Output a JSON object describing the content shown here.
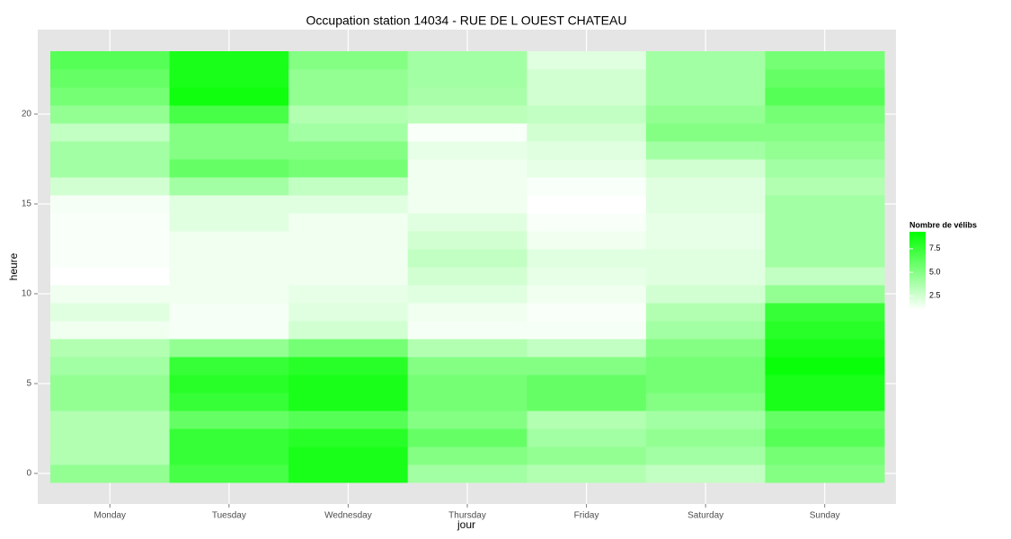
{
  "chart_data": {
    "type": "heatmap",
    "title": "Occupation station 14034 - RUE DE L OUEST CHATEAU",
    "x_label": "jour",
    "y_label": "heure",
    "categories": [
      "Monday",
      "Tuesday",
      "Wednesday",
      "Thursday",
      "Friday",
      "Saturday",
      "Sunday"
    ],
    "y": [
      0,
      1,
      2,
      3,
      4,
      5,
      6,
      7,
      8,
      9,
      10,
      11,
      12,
      13,
      14,
      15,
      16,
      17,
      18,
      19,
      20,
      21,
      22,
      23
    ],
    "values": [
      [
        4.5,
        7,
        8.5,
        4,
        3.5,
        3,
        5
      ],
      [
        3.5,
        7.5,
        8.5,
        5,
        4.5,
        4,
        5.5
      ],
      [
        3.5,
        7.5,
        8,
        6,
        4,
        4.5,
        6.5
      ],
      [
        3.5,
        6,
        6.5,
        5,
        3.5,
        4,
        6
      ],
      [
        4.5,
        7.5,
        8.5,
        5.5,
        6,
        5,
        8.5
      ],
      [
        4.5,
        8,
        8.5,
        5.5,
        6,
        5.5,
        8.5
      ],
      [
        4,
        7.5,
        8,
        5,
        5,
        5.5,
        9
      ],
      [
        3.5,
        4.5,
        5.5,
        3.5,
        3,
        5,
        8.5
      ],
      [
        1.5,
        1.3,
        2.5,
        1.3,
        1.3,
        4,
        8
      ],
      [
        2,
        1.3,
        2,
        1.5,
        1.2,
        3.5,
        7.5
      ],
      [
        1.5,
        1.5,
        1.8,
        2,
        1.5,
        2.5,
        4.5
      ],
      [
        1,
        1.5,
        1.5,
        2.5,
        1.8,
        2,
        3
      ],
      [
        1.2,
        1.5,
        1.5,
        3,
        2,
        2,
        4
      ],
      [
        1.2,
        1.5,
        1.5,
        2.5,
        1.5,
        1.8,
        4
      ],
      [
        1.2,
        2,
        1.5,
        2,
        1.2,
        1.8,
        4
      ],
      [
        1.3,
        2,
        2,
        1.5,
        1,
        2,
        4
      ],
      [
        2.5,
        4,
        3,
        1.5,
        1.2,
        2,
        3.5
      ],
      [
        4,
        6,
        5.5,
        1.5,
        1.8,
        2.5,
        4
      ],
      [
        4,
        5,
        5,
        1.8,
        2,
        4,
        4.5
      ],
      [
        3,
        5,
        4,
        1.2,
        2.5,
        5,
        5
      ],
      [
        4.5,
        7,
        3.5,
        3.2,
        3,
        4.5,
        5.5
      ],
      [
        5.5,
        8.8,
        4.5,
        3.8,
        2.5,
        4,
        6.5
      ],
      [
        6,
        8.5,
        4.5,
        4,
        2.5,
        4,
        6
      ],
      [
        6.5,
        8.5,
        5,
        4,
        2,
        4,
        5.5
      ]
    ],
    "ylim": [
      -0.5,
      23.5
    ],
    "yticks": [
      0,
      5,
      10,
      15,
      20
    ],
    "grid": true,
    "colorbar": {
      "title": "Nombre de vélibs",
      "lim": [
        1,
        9.3
      ],
      "low": "#ffffff",
      "high": "#00ff00",
      "ticks": [
        2.5,
        {
          "value": 5,
          "label": "5.0"
        },
        7.5
      ]
    }
  }
}
